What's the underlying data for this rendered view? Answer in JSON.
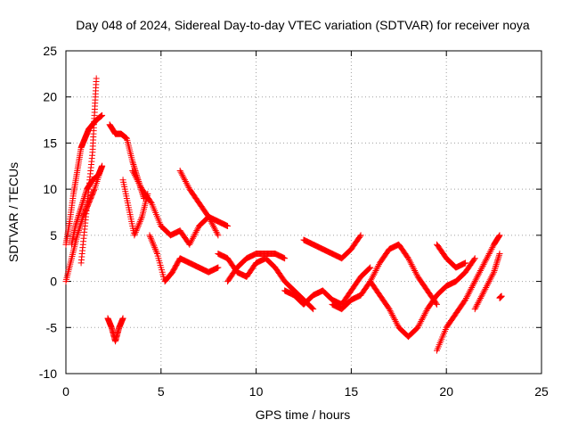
{
  "chart_data": {
    "type": "scatter",
    "title": "Day 048 of 2024, Sidereal Day-to-day VTEC variation (SDTVAR) for receiver noya",
    "xlabel": "GPS time / hours",
    "ylabel": "SDTVAR / TECUs",
    "xlim": [
      0,
      25
    ],
    "ylim": [
      -10,
      25
    ],
    "xticks": [
      0,
      5,
      10,
      15,
      20,
      25
    ],
    "yticks": [
      -10,
      -5,
      0,
      5,
      10,
      15,
      20,
      25
    ],
    "grid": true,
    "marker": "+",
    "color": "#ff0000",
    "series": [
      {
        "name": "s1",
        "x": [
          0.0,
          0.2,
          0.4,
          0.6,
          0.8,
          1.0,
          1.2,
          1.4,
          1.6,
          1.9
        ],
        "y": [
          4.0,
          6.5,
          9.5,
          12.0,
          14.5,
          15.5,
          16.5,
          17.0,
          17.5,
          18.0
        ]
      },
      {
        "name": "s2",
        "x": [
          0.0,
          0.3,
          0.6,
          0.9,
          1.2,
          1.5,
          1.9
        ],
        "y": [
          0.0,
          2.5,
          5.0,
          7.0,
          8.5,
          10.0,
          12.5
        ]
      },
      {
        "name": "s3",
        "x": [
          0.8,
          1.0,
          1.2,
          1.4,
          1.5,
          1.6
        ],
        "y": [
          2.0,
          6.0,
          10.0,
          14.0,
          18.0,
          22.0
        ]
      },
      {
        "name": "s4",
        "x": [
          0.3,
          0.5,
          0.8,
          1.1,
          1.4,
          1.7,
          1.9
        ],
        "y": [
          4.0,
          6.0,
          8.0,
          10.0,
          11.0,
          11.5,
          12.5
        ]
      },
      {
        "name": "s5",
        "x": [
          2.3,
          2.6,
          2.9,
          3.2,
          3.5,
          3.8,
          4.1
        ],
        "y": [
          17.0,
          16.0,
          16.0,
          15.5,
          13.0,
          11.0,
          9.0
        ]
      },
      {
        "name": "s6",
        "x": [
          2.2,
          2.4,
          2.6,
          2.8,
          3.0
        ],
        "y": [
          -4.0,
          -5.0,
          -6.5,
          -5.0,
          -4.0
        ]
      },
      {
        "name": "s7",
        "x": [
          3.0,
          3.3,
          3.6,
          4.0,
          4.3
        ],
        "y": [
          11.0,
          8.0,
          5.0,
          7.0,
          9.5
        ]
      },
      {
        "name": "s8",
        "x": [
          4.4,
          4.8,
          5.2,
          5.6,
          6.0,
          6.5,
          7.0,
          7.5,
          8.0
        ],
        "y": [
          5.0,
          3.0,
          0.0,
          1.0,
          2.5,
          2.0,
          1.5,
          1.0,
          1.5
        ]
      },
      {
        "name": "s9",
        "x": [
          3.5,
          4.0,
          4.5,
          5.0,
          5.5,
          6.0,
          6.5,
          7.0,
          7.5,
          8.0
        ],
        "y": [
          12.0,
          10.0,
          8.5,
          6.0,
          5.0,
          5.5,
          4.0,
          6.0,
          7.0,
          5.0
        ]
      },
      {
        "name": "s10",
        "x": [
          6.0,
          6.5,
          7.0,
          7.5,
          8.0,
          8.5
        ],
        "y": [
          12.0,
          10.0,
          8.5,
          7.0,
          6.5,
          6.0
        ]
      },
      {
        "name": "s11",
        "x": [
          8.0,
          8.5,
          9.0,
          9.5,
          10.0,
          10.5,
          11.0,
          11.5,
          12.0,
          12.5,
          13.0
        ],
        "y": [
          3.0,
          2.5,
          1.0,
          0.5,
          2.0,
          2.5,
          1.5,
          0.0,
          -1.0,
          -2.0,
          -3.0
        ]
      },
      {
        "name": "s12",
        "x": [
          8.5,
          9.0,
          9.5,
          10.0,
          10.5,
          11.0,
          11.5
        ],
        "y": [
          0.0,
          1.5,
          2.5,
          3.0,
          3.0,
          3.0,
          2.5
        ]
      },
      {
        "name": "s13",
        "x": [
          12.5,
          13.0,
          13.5,
          14.0,
          14.5,
          15.0,
          15.5
        ],
        "y": [
          4.5,
          4.0,
          3.5,
          3.0,
          2.5,
          3.5,
          5.0
        ]
      },
      {
        "name": "s14",
        "x": [
          11.5,
          12.0,
          12.5,
          13.0,
          13.5,
          14.0,
          14.5,
          15.0,
          15.5,
          16.0
        ],
        "y": [
          -1.0,
          -1.5,
          -2.5,
          -1.5,
          -1.0,
          -2.0,
          -2.5,
          -1.0,
          0.5,
          1.5
        ]
      },
      {
        "name": "s15",
        "x": [
          14.0,
          14.5,
          15.0,
          15.5,
          16.0,
          16.5,
          17.0,
          17.5,
          18.0,
          18.5,
          19.0,
          19.5
        ],
        "y": [
          -2.5,
          -3.0,
          -2.0,
          -1.5,
          0.0,
          2.0,
          3.5,
          4.0,
          2.5,
          0.5,
          -1.0,
          -2.5
        ]
      },
      {
        "name": "s16",
        "x": [
          16.0,
          16.5,
          17.0,
          17.5,
          18.0,
          18.5,
          19.0,
          19.5,
          20.0,
          20.5,
          21.0,
          21.5
        ],
        "y": [
          0.0,
          -1.5,
          -3.0,
          -5.0,
          -6.0,
          -5.0,
          -3.0,
          -1.5,
          -0.5,
          0.0,
          1.0,
          2.5
        ]
      },
      {
        "name": "s17",
        "x": [
          19.5,
          20.0,
          20.5,
          21.0
        ],
        "y": [
          4.0,
          2.5,
          1.5,
          2.0
        ]
      },
      {
        "name": "s18",
        "x": [
          19.5,
          20.0,
          20.5,
          21.0,
          21.5,
          22.0,
          22.5,
          22.8
        ],
        "y": [
          -7.5,
          -5.0,
          -3.5,
          -2.0,
          0.0,
          2.0,
          4.0,
          5.0
        ]
      },
      {
        "name": "s19",
        "x": [
          21.5,
          22.0,
          22.5,
          22.8
        ],
        "y": [
          -3.0,
          -1.0,
          1.0,
          3.0
        ]
      },
      {
        "name": "s20",
        "x": [
          22.8,
          22.9
        ],
        "y": [
          -1.8,
          -1.6
        ]
      }
    ]
  }
}
